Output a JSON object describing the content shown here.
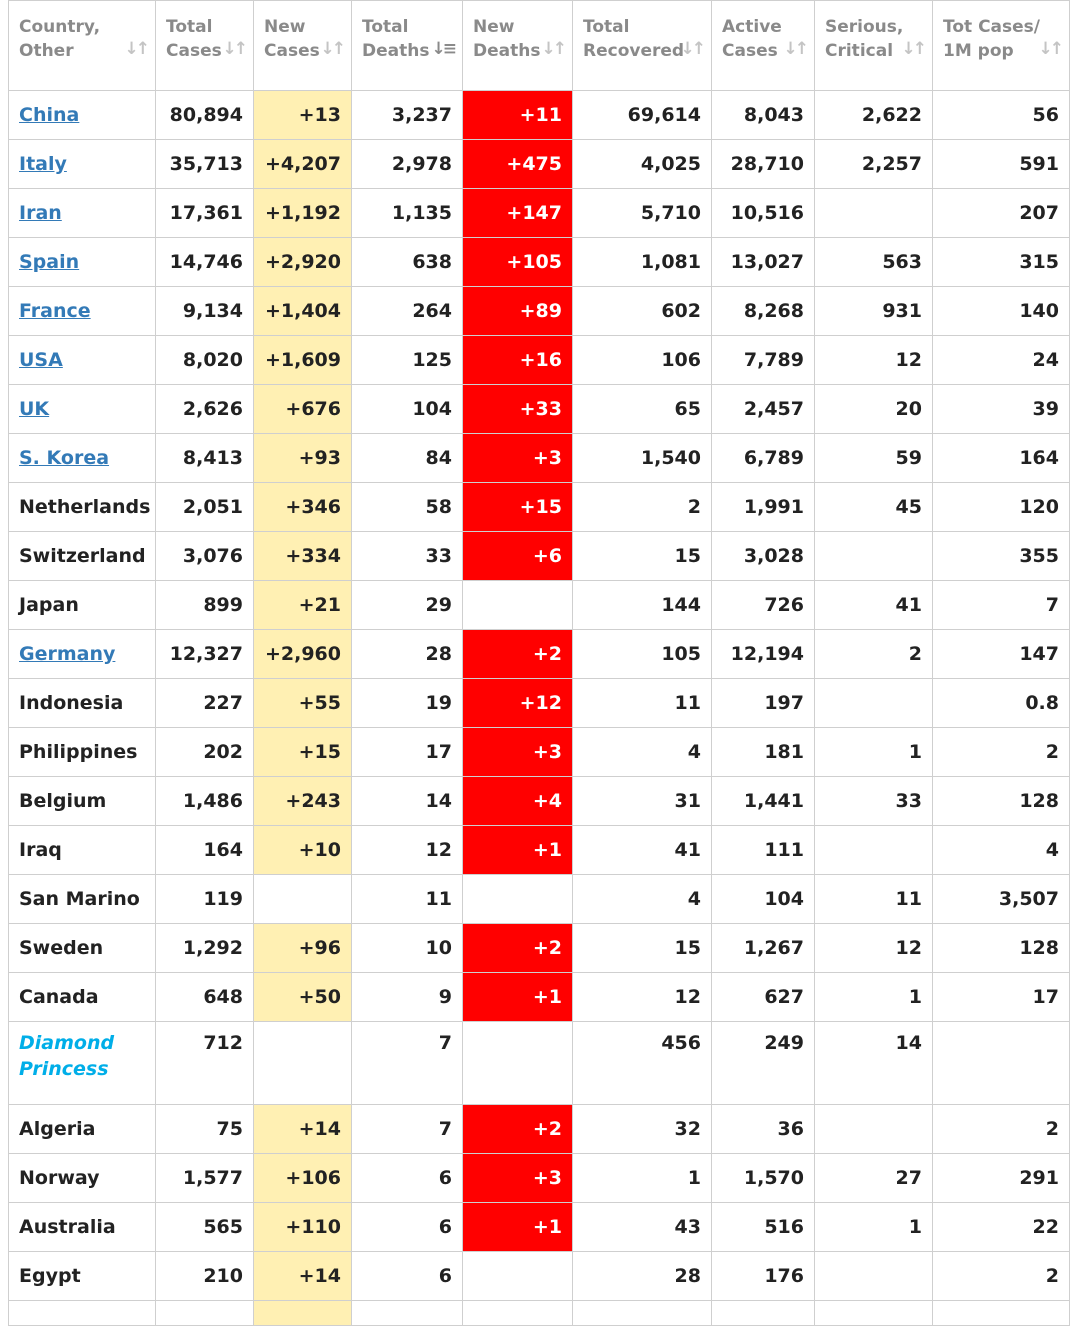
{
  "headers": {
    "country": [
      "Country,",
      "Other"
    ],
    "total_cases": [
      "Total",
      "Cases"
    ],
    "new_cases": [
      "New",
      "Cases"
    ],
    "total_deaths": [
      "Total",
      "Deaths"
    ],
    "new_deaths": [
      "New",
      "Deaths"
    ],
    "total_recovered": [
      "Total",
      "Recovered"
    ],
    "active_cases": [
      "Active",
      "Cases"
    ],
    "serious_critical": [
      "Serious,",
      "Critical"
    ],
    "tot_cases_1m": [
      "Tot Cases/",
      "1M pop"
    ]
  },
  "sort_icons": {
    "default": "sort-icon",
    "active": "sort-desc-icon",
    "active_column": "total_deaths"
  },
  "colors": {
    "new_cases_bg": "#fff0b3",
    "new_deaths_bg": "#ff0000",
    "link": "#337ab7",
    "special": "#00aee8"
  },
  "rows": [
    {
      "country": "China",
      "link": true,
      "total_cases": "80,894",
      "new_cases": "+13",
      "total_deaths": "3,237",
      "new_deaths": "+11",
      "total_recovered": "69,614",
      "active_cases": "8,043",
      "serious_critical": "2,622",
      "tot_cases_1m": "56"
    },
    {
      "country": "Italy",
      "link": true,
      "total_cases": "35,713",
      "new_cases": "+4,207",
      "total_deaths": "2,978",
      "new_deaths": "+475",
      "total_recovered": "4,025",
      "active_cases": "28,710",
      "serious_critical": "2,257",
      "tot_cases_1m": "591"
    },
    {
      "country": "Iran",
      "link": true,
      "total_cases": "17,361",
      "new_cases": "+1,192",
      "total_deaths": "1,135",
      "new_deaths": "+147",
      "total_recovered": "5,710",
      "active_cases": "10,516",
      "serious_critical": "",
      "tot_cases_1m": "207"
    },
    {
      "country": "Spain",
      "link": true,
      "total_cases": "14,746",
      "new_cases": "+2,920",
      "total_deaths": "638",
      "new_deaths": "+105",
      "total_recovered": "1,081",
      "active_cases": "13,027",
      "serious_critical": "563",
      "tot_cases_1m": "315"
    },
    {
      "country": "France",
      "link": true,
      "total_cases": "9,134",
      "new_cases": "+1,404",
      "total_deaths": "264",
      "new_deaths": "+89",
      "total_recovered": "602",
      "active_cases": "8,268",
      "serious_critical": "931",
      "tot_cases_1m": "140"
    },
    {
      "country": "USA",
      "link": true,
      "total_cases": "8,020",
      "new_cases": "+1,609",
      "total_deaths": "125",
      "new_deaths": "+16",
      "total_recovered": "106",
      "active_cases": "7,789",
      "serious_critical": "12",
      "tot_cases_1m": "24"
    },
    {
      "country": "UK",
      "link": true,
      "total_cases": "2,626",
      "new_cases": "+676",
      "total_deaths": "104",
      "new_deaths": "+33",
      "total_recovered": "65",
      "active_cases": "2,457",
      "serious_critical": "20",
      "tot_cases_1m": "39"
    },
    {
      "country": "S. Korea",
      "link": true,
      "total_cases": "8,413",
      "new_cases": "+93",
      "total_deaths": "84",
      "new_deaths": "+3",
      "total_recovered": "1,540",
      "active_cases": "6,789",
      "serious_critical": "59",
      "tot_cases_1m": "164"
    },
    {
      "country": "Netherlands",
      "link": false,
      "total_cases": "2,051",
      "new_cases": "+346",
      "total_deaths": "58",
      "new_deaths": "+15",
      "total_recovered": "2",
      "active_cases": "1,991",
      "serious_critical": "45",
      "tot_cases_1m": "120"
    },
    {
      "country": "Switzerland",
      "link": false,
      "total_cases": "3,076",
      "new_cases": "+334",
      "total_deaths": "33",
      "new_deaths": "+6",
      "total_recovered": "15",
      "active_cases": "3,028",
      "serious_critical": "",
      "tot_cases_1m": "355"
    },
    {
      "country": "Japan",
      "link": false,
      "total_cases": "899",
      "new_cases": "+21",
      "total_deaths": "29",
      "new_deaths": "",
      "total_recovered": "144",
      "active_cases": "726",
      "serious_critical": "41",
      "tot_cases_1m": "7"
    },
    {
      "country": "Germany",
      "link": true,
      "total_cases": "12,327",
      "new_cases": "+2,960",
      "total_deaths": "28",
      "new_deaths": "+2",
      "total_recovered": "105",
      "active_cases": "12,194",
      "serious_critical": "2",
      "tot_cases_1m": "147"
    },
    {
      "country": "Indonesia",
      "link": false,
      "total_cases": "227",
      "new_cases": "+55",
      "total_deaths": "19",
      "new_deaths": "+12",
      "total_recovered": "11",
      "active_cases": "197",
      "serious_critical": "",
      "tot_cases_1m": "0.8"
    },
    {
      "country": "Philippines",
      "link": false,
      "total_cases": "202",
      "new_cases": "+15",
      "total_deaths": "17",
      "new_deaths": "+3",
      "total_recovered": "4",
      "active_cases": "181",
      "serious_critical": "1",
      "tot_cases_1m": "2"
    },
    {
      "country": "Belgium",
      "link": false,
      "total_cases": "1,486",
      "new_cases": "+243",
      "total_deaths": "14",
      "new_deaths": "+4",
      "total_recovered": "31",
      "active_cases": "1,441",
      "serious_critical": "33",
      "tot_cases_1m": "128"
    },
    {
      "country": "Iraq",
      "link": false,
      "total_cases": "164",
      "new_cases": "+10",
      "total_deaths": "12",
      "new_deaths": "+1",
      "total_recovered": "41",
      "active_cases": "111",
      "serious_critical": "",
      "tot_cases_1m": "4"
    },
    {
      "country": "San Marino",
      "link": false,
      "total_cases": "119",
      "new_cases": "",
      "total_deaths": "11",
      "new_deaths": "",
      "total_recovered": "4",
      "active_cases": "104",
      "serious_critical": "11",
      "tot_cases_1m": "3,507"
    },
    {
      "country": "Sweden",
      "link": false,
      "total_cases": "1,292",
      "new_cases": "+96",
      "total_deaths": "10",
      "new_deaths": "+2",
      "total_recovered": "15",
      "active_cases": "1,267",
      "serious_critical": "12",
      "tot_cases_1m": "128"
    },
    {
      "country": "Canada",
      "link": false,
      "total_cases": "648",
      "new_cases": "+50",
      "total_deaths": "9",
      "new_deaths": "+1",
      "total_recovered": "12",
      "active_cases": "627",
      "serious_critical": "1",
      "tot_cases_1m": "17"
    },
    {
      "country": "Diamond Princess",
      "country_lines": [
        "Diamond",
        "Princess"
      ],
      "special": true,
      "link": false,
      "total_cases": "712",
      "new_cases": "",
      "total_deaths": "7",
      "new_deaths": "",
      "total_recovered": "456",
      "active_cases": "249",
      "serious_critical": "14",
      "tot_cases_1m": ""
    },
    {
      "country": "Algeria",
      "link": false,
      "total_cases": "75",
      "new_cases": "+14",
      "total_deaths": "7",
      "new_deaths": "+2",
      "total_recovered": "32",
      "active_cases": "36",
      "serious_critical": "",
      "tot_cases_1m": "2"
    },
    {
      "country": "Norway",
      "link": false,
      "total_cases": "1,577",
      "new_cases": "+106",
      "total_deaths": "6",
      "new_deaths": "+3",
      "total_recovered": "1",
      "active_cases": "1,570",
      "serious_critical": "27",
      "tot_cases_1m": "291"
    },
    {
      "country": "Australia",
      "link": false,
      "total_cases": "565",
      "new_cases": "+110",
      "total_deaths": "6",
      "new_deaths": "+1",
      "total_recovered": "43",
      "active_cases": "516",
      "serious_critical": "1",
      "tot_cases_1m": "22"
    },
    {
      "country": "Egypt",
      "link": false,
      "total_cases": "210",
      "new_cases": "+14",
      "total_deaths": "6",
      "new_deaths": "",
      "total_recovered": "28",
      "active_cases": "176",
      "serious_critical": "",
      "tot_cases_1m": "2"
    },
    {
      "country": "",
      "link": false,
      "total_cases": "",
      "new_cases": "",
      "total_deaths": "",
      "new_deaths": "",
      "total_recovered": "",
      "active_cases": "",
      "serious_critical": "",
      "tot_cases_1m": "",
      "partial": true
    }
  ]
}
